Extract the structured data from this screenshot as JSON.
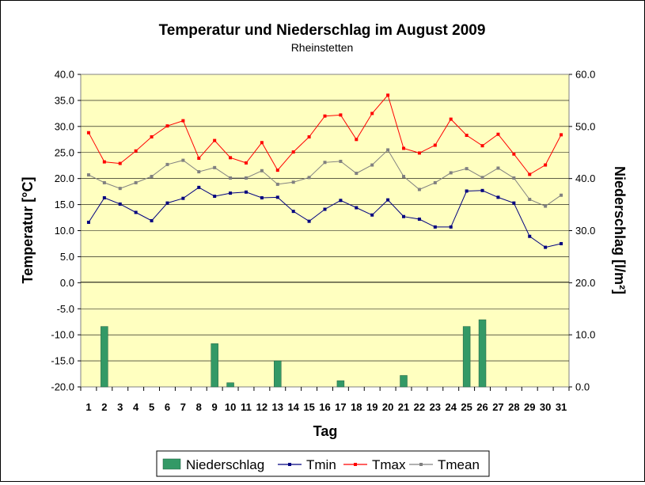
{
  "chart_data": {
    "type": "bar+line",
    "title": "Temperatur und Niederschlag im August 2009",
    "subtitle": "Rheinstetten",
    "xlabel": "Tag",
    "ylabel_left": "Temperatur [°C]",
    "ylabel_right": "Niederschlag [l/m²]",
    "y_left_range": [
      -20,
      40
    ],
    "y_right_range": [
      0,
      60
    ],
    "y_left_ticks": [
      "-20.0",
      "-15.0",
      "-10.0",
      "-5.0",
      "0.0",
      "5.0",
      "10.0",
      "15.0",
      "20.0",
      "25.0",
      "30.0",
      "35.0",
      "40.0"
    ],
    "y_right_ticks": [
      "0.0",
      "10.0",
      "20.0",
      "30.0",
      "40.0",
      "50.0",
      "60.0"
    ],
    "categories": [
      "1",
      "2",
      "3",
      "4",
      "5",
      "6",
      "7",
      "8",
      "9",
      "10",
      "11",
      "12",
      "13",
      "14",
      "15",
      "16",
      "17",
      "18",
      "19",
      "20",
      "21",
      "22",
      "23",
      "24",
      "25",
      "26",
      "27",
      "28",
      "29",
      "30",
      "31"
    ],
    "grid": "horizontal",
    "legend_position": "bottom",
    "series": [
      {
        "name": "Niederschlag",
        "kind": "bar",
        "axis": "right",
        "color": "#339966",
        "values": [
          0,
          11.6,
          0,
          0,
          0,
          0,
          0,
          0,
          8.3,
          0.8,
          0,
          0,
          5.0,
          0,
          0,
          0,
          1.2,
          0,
          0,
          0,
          2.2,
          0,
          0,
          0,
          11.6,
          12.9,
          0,
          0,
          0,
          0,
          0
        ]
      },
      {
        "name": "Tmin",
        "kind": "line",
        "axis": "left",
        "color": "#000080",
        "values": [
          11.6,
          16.3,
          15.1,
          13.5,
          11.9,
          15.3,
          16.2,
          18.3,
          16.6,
          17.2,
          17.4,
          16.3,
          16.4,
          13.7,
          11.8,
          14.1,
          15.8,
          14.4,
          13.0,
          15.9,
          12.7,
          12.2,
          10.7,
          10.7,
          17.6,
          17.7,
          16.4,
          15.3,
          8.9,
          6.8,
          7.5
        ]
      },
      {
        "name": "Tmax",
        "kind": "line",
        "axis": "left",
        "color": "#ff0000",
        "values": [
          28.8,
          23.2,
          22.9,
          25.3,
          28.0,
          30.1,
          31.1,
          23.9,
          27.3,
          24.0,
          23.0,
          26.9,
          21.6,
          25.1,
          28.0,
          32.0,
          32.2,
          27.5,
          32.5,
          36.0,
          25.8,
          24.9,
          26.4,
          31.4,
          28.3,
          26.3,
          28.5,
          24.7,
          20.8,
          22.6,
          28.4
        ]
      },
      {
        "name": "Tmean",
        "kind": "line",
        "axis": "left",
        "color": "#808080",
        "values": [
          20.7,
          19.2,
          18.1,
          19.2,
          20.4,
          22.7,
          23.5,
          21.3,
          22.1,
          20.1,
          20.1,
          21.5,
          18.9,
          19.3,
          20.2,
          23.1,
          23.3,
          21.0,
          22.6,
          25.5,
          20.4,
          17.9,
          19.2,
          21.1,
          21.9,
          20.2,
          22.0,
          20.1,
          16.0,
          14.7,
          16.8
        ]
      }
    ]
  }
}
